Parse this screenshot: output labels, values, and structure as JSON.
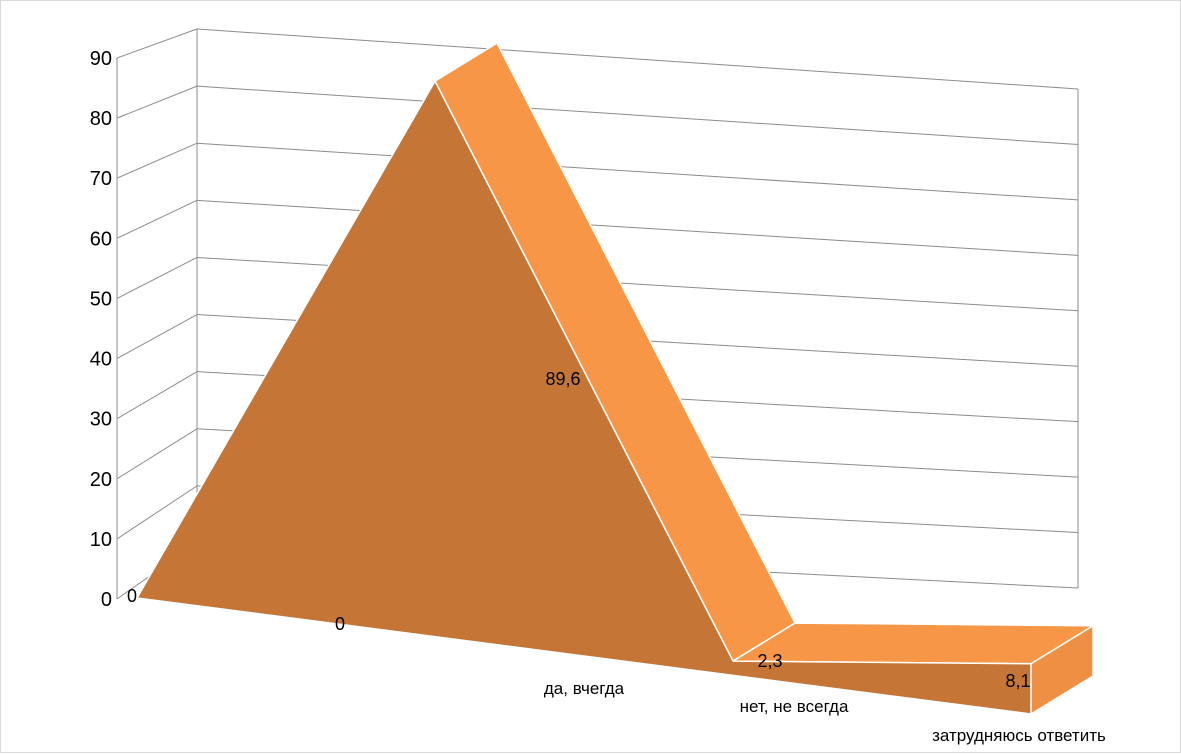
{
  "chart_data": {
    "type": "area",
    "categories": [
      "",
      "да, вчегда",
      "нет, не всегда",
      "затрудняюсь ответить"
    ],
    "values": [
      0,
      89.6,
      2.3,
      8.1
    ],
    "data_labels": [
      "0",
      "89,6",
      "2,3",
      "8,1"
    ],
    "extra_zero_label": "0",
    "title": "",
    "xlabel": "",
    "ylabel": "",
    "ylim": [
      0,
      90
    ],
    "yticks": [
      "0",
      "10",
      "20",
      "30",
      "40",
      "50",
      "60",
      "70",
      "80",
      "90"
    ],
    "grid": true,
    "legend": "none",
    "three_d": true
  },
  "colors": {
    "front": "#c57637",
    "top": "#f79646",
    "side": "#ef8f44",
    "grid": "#8c8c8c",
    "frame_border": "#d9d9d9"
  }
}
